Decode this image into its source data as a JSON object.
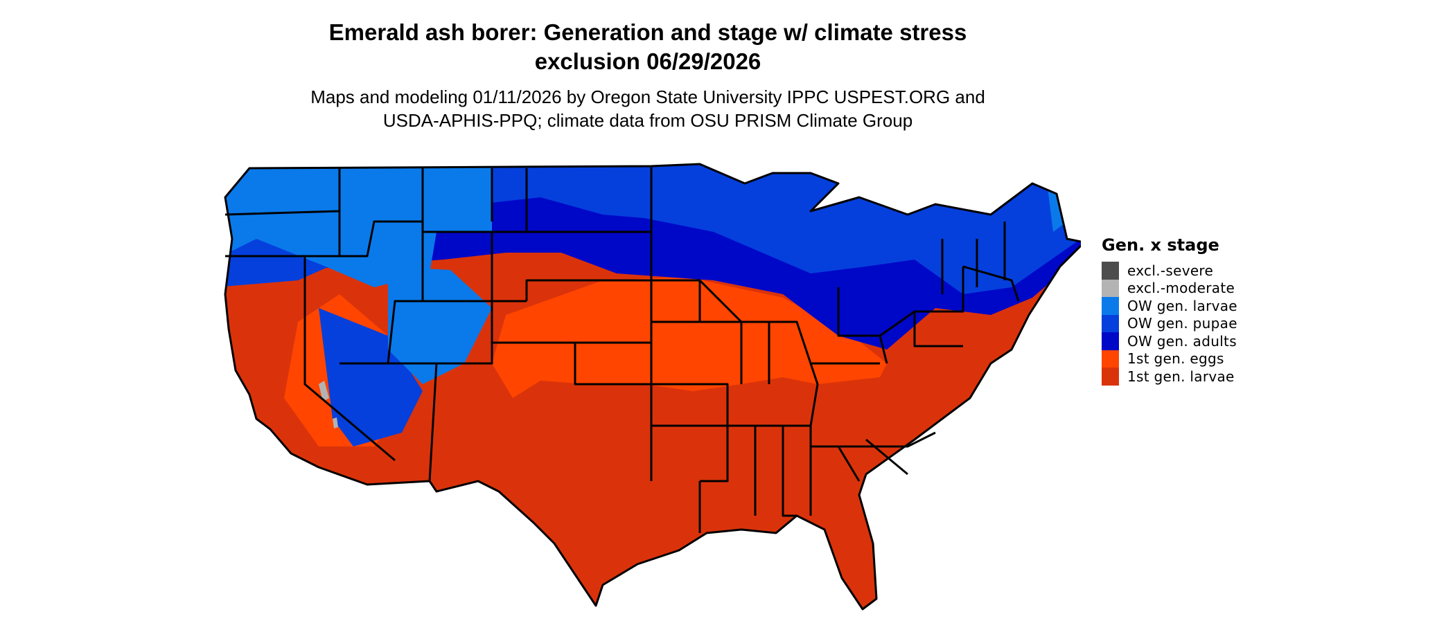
{
  "title": "Emerald ash borer: Generation and stage w/ climate stress",
  "title_line2": "exclusion 06/29/2026",
  "subtitle_line1": "Maps and modeling 01/11/2026 by Oregon State University IPPC USPEST.ORG and",
  "subtitle_line2": "USDA-APHIS-PPQ; climate data from OSU PRISM Climate Group",
  "legend": {
    "title": "Gen. x stage",
    "items": [
      {
        "label": "excl.-severe",
        "color": "#4d4d4d"
      },
      {
        "label": "excl.-moderate",
        "color": "#b3b3b3"
      },
      {
        "label": "OW gen. larvae",
        "color": "#0a7aeb"
      },
      {
        "label": "OW gen. pupae",
        "color": "#0540dc"
      },
      {
        "label": "OW gen. adults",
        "color": "#0008c8"
      },
      {
        "label": "1st gen. eggs",
        "color": "#ff4500"
      },
      {
        "label": "1st gen. larvae",
        "color": "#da330b"
      }
    ]
  },
  "map": {
    "region": "Conterminous United States",
    "boundary_color": "#000000",
    "background_color": "#ffffff"
  }
}
